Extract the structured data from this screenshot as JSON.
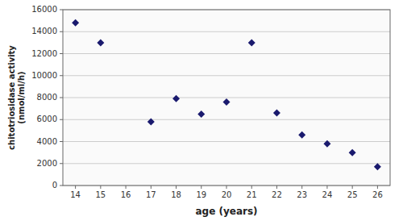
{
  "chart_data": {
    "type": "scatter",
    "xlabel": "age (years)",
    "ylabel": "chitotriosidase activity\n(nmol/ml/h)",
    "x": [
      14,
      15,
      17,
      18,
      19,
      20,
      21,
      22,
      23,
      24,
      25,
      26
    ],
    "values": [
      14800,
      13000,
      5800,
      7900,
      6500,
      7600,
      13000,
      6600,
      4600,
      3800,
      3000,
      1700
    ],
    "color": "#1a1a6e",
    "marker": "diamond",
    "xlim": [
      13.5,
      26.5
    ],
    "ylim": [
      0,
      16000
    ],
    "xticks": [
      14,
      15,
      16,
      17,
      18,
      19,
      20,
      21,
      22,
      23,
      24,
      25,
      26
    ],
    "yticks": [
      0,
      2000,
      4000,
      6000,
      8000,
      10000,
      12000,
      14000,
      16000
    ],
    "grid": true
  }
}
